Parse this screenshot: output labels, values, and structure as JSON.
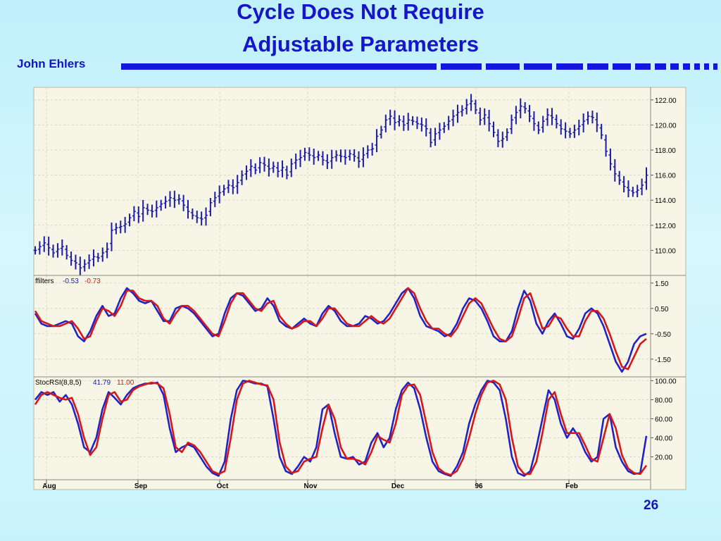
{
  "slide": {
    "title_line1": "Cycle Does Not Require",
    "title_line2": "Adjustable Parameters",
    "author": "John Ehlers",
    "page_number": "26"
  },
  "colors": {
    "title": "#1616c8",
    "panel_background": "#f7f6e6",
    "grid": "#d6d6c6",
    "price_bars": "#1c1ca8",
    "series_blue": "#2222c8",
    "series_red": "#d41818"
  },
  "chart_data": [
    {
      "type": "bar",
      "subtype": "ohlc-price-bars",
      "yticks": [
        "122.00",
        "120.00",
        "118.00",
        "116.00",
        "114.00",
        "112.00",
        "110.00"
      ],
      "ylim": [
        108,
        123
      ],
      "x_tick_labels": [
        "Aug",
        "Sep",
        "Oct",
        "Nov",
        "Dec",
        "96",
        "Feb"
      ],
      "grid": true,
      "close": [
        110.0,
        110.3,
        110.6,
        110.2,
        109.8,
        110.1,
        110.3,
        109.6,
        109.2,
        109.0,
        108.6,
        108.9,
        109.2,
        109.5,
        109.4,
        109.8,
        110.1,
        111.6,
        111.8,
        111.9,
        112.1,
        112.6,
        113.1,
        112.7,
        113.4,
        113.2,
        113.1,
        113.4,
        113.7,
        113.9,
        114.2,
        114.0,
        114.1,
        113.6,
        113.1,
        112.8,
        112.6,
        112.5,
        112.8,
        113.8,
        114.2,
        114.6,
        114.9,
        115.2,
        115.0,
        115.4,
        116.0,
        116.3,
        116.7,
        116.4,
        117.0,
        116.8,
        116.5,
        116.7,
        116.3,
        116.6,
        116.0,
        116.9,
        117.2,
        117.4,
        117.8,
        117.6,
        117.4,
        117.6,
        117.2,
        117.0,
        117.4,
        117.6,
        117.5,
        117.4,
        117.7,
        117.5,
        117.1,
        117.6,
        118.0,
        118.1,
        119.1,
        119.6,
        120.4,
        120.7,
        120.2,
        120.4,
        120.0,
        120.4,
        120.3,
        120.1,
        120.0,
        119.7,
        118.6,
        119.3,
        119.6,
        119.9,
        120.3,
        120.7,
        121.0,
        121.2,
        121.6,
        121.9,
        121.2,
        120.4,
        120.8,
        120.1,
        119.4,
        118.7,
        118.9,
        119.4,
        120.4,
        121.0,
        121.5,
        121.3,
        120.7,
        120.1,
        119.6,
        120.3,
        120.8,
        120.6,
        120.1,
        119.7,
        119.5,
        119.3,
        119.6,
        119.9,
        120.3,
        120.7,
        120.6,
        120.0,
        119.2,
        117.9,
        116.9,
        116.1,
        115.6,
        115.1,
        114.8,
        114.6,
        114.8,
        115.2,
        116.0
      ]
    },
    {
      "type": "line",
      "legend_label": "ffilters",
      "legend_values": [
        "-0.53",
        "-0.73"
      ],
      "yticks": [
        "1.50",
        "0.50",
        "-0.50",
        "-1.50"
      ],
      "ylim": [
        -2.2,
        1.8
      ],
      "grid": true,
      "series": [
        {
          "color": "#2222c8",
          "values": [
            0.3,
            -0.1,
            -0.2,
            -0.2,
            -0.1,
            0.0,
            -0.1,
            -0.6,
            -0.8,
            -0.4,
            0.2,
            0.6,
            0.2,
            0.3,
            0.9,
            1.3,
            1.1,
            0.8,
            0.7,
            0.8,
            0.4,
            0.0,
            0.0,
            0.5,
            0.6,
            0.5,
            0.3,
            0.0,
            -0.3,
            -0.6,
            -0.5,
            0.3,
            0.9,
            1.1,
            1.0,
            0.7,
            0.4,
            0.5,
            0.9,
            0.6,
            0.0,
            -0.2,
            -0.3,
            -0.1,
            0.1,
            -0.1,
            -0.2,
            0.3,
            0.6,
            0.4,
            0.0,
            -0.2,
            -0.2,
            -0.1,
            0.2,
            0.1,
            -0.1,
            0.0,
            0.3,
            0.7,
            1.1,
            1.3,
            0.9,
            0.2,
            -0.2,
            -0.3,
            -0.4,
            -0.6,
            -0.5,
            -0.1,
            0.5,
            0.9,
            0.8,
            0.5,
            0.0,
            -0.6,
            -0.8,
            -0.8,
            -0.4,
            0.5,
            1.2,
            0.8,
            -0.1,
            -0.5,
            0.0,
            0.3,
            -0.1,
            -0.6,
            -0.7,
            -0.3,
            0.3,
            0.5,
            0.3,
            -0.2,
            -0.9,
            -1.6,
            -2.0,
            -1.6,
            -0.9,
            -0.6,
            -0.5
          ]
        },
        {
          "color": "#d41818",
          "values": [
            0.4,
            0.0,
            -0.1,
            -0.2,
            -0.2,
            -0.1,
            0.0,
            -0.3,
            -0.7,
            -0.6,
            0.0,
            0.5,
            0.4,
            0.2,
            0.6,
            1.2,
            1.2,
            0.9,
            0.8,
            0.8,
            0.6,
            0.1,
            -0.1,
            0.3,
            0.6,
            0.6,
            0.4,
            0.1,
            -0.2,
            -0.5,
            -0.6,
            0.0,
            0.7,
            1.1,
            1.1,
            0.8,
            0.5,
            0.4,
            0.7,
            0.8,
            0.2,
            -0.1,
            -0.3,
            -0.2,
            0.0,
            0.0,
            -0.2,
            0.1,
            0.5,
            0.5,
            0.2,
            -0.1,
            -0.2,
            -0.2,
            0.0,
            0.2,
            0.0,
            -0.1,
            0.1,
            0.5,
            0.9,
            1.3,
            1.1,
            0.5,
            0.0,
            -0.3,
            -0.3,
            -0.5,
            -0.6,
            -0.3,
            0.2,
            0.7,
            0.9,
            0.7,
            0.2,
            -0.3,
            -0.7,
            -0.8,
            -0.6,
            0.1,
            0.9,
            1.1,
            0.4,
            -0.3,
            -0.2,
            0.2,
            0.1,
            -0.3,
            -0.6,
            -0.6,
            0.0,
            0.4,
            0.4,
            0.1,
            -0.5,
            -1.2,
            -1.8,
            -1.9,
            -1.4,
            -0.9,
            -0.7
          ]
        }
      ]
    },
    {
      "type": "line",
      "legend_label": "StocRSI(8,8,5)",
      "legend_values": [
        "41.79",
        "11.00"
      ],
      "yticks": [
        "100.00",
        "80.00",
        "60.00",
        "40.00",
        "20.00"
      ],
      "ylim": [
        -4,
        104
      ],
      "grid": true,
      "series": [
        {
          "color": "#2222c8",
          "values": [
            80,
            88,
            85,
            88,
            78,
            85,
            75,
            55,
            30,
            25,
            40,
            70,
            88,
            82,
            75,
            85,
            92,
            95,
            97,
            97,
            98,
            85,
            50,
            25,
            30,
            33,
            30,
            20,
            10,
            3,
            0,
            15,
            60,
            90,
            100,
            99,
            97,
            97,
            94,
            60,
            20,
            5,
            2,
            10,
            20,
            15,
            30,
            70,
            75,
            45,
            20,
            18,
            20,
            12,
            15,
            35,
            45,
            30,
            40,
            70,
            90,
            98,
            92,
            70,
            40,
            15,
            5,
            2,
            0,
            10,
            25,
            55,
            75,
            90,
            100,
            98,
            90,
            60,
            20,
            3,
            0,
            5,
            30,
            60,
            90,
            80,
            55,
            40,
            50,
            40,
            25,
            15,
            20,
            60,
            65,
            30,
            15,
            5,
            2,
            3,
            42
          ]
        },
        {
          "color": "#d41818",
          "values": [
            75,
            85,
            88,
            85,
            82,
            80,
            82,
            65,
            40,
            22,
            30,
            60,
            85,
            88,
            78,
            80,
            90,
            94,
            96,
            98,
            97,
            92,
            65,
            30,
            25,
            35,
            32,
            25,
            15,
            5,
            2,
            5,
            40,
            80,
            97,
            100,
            98,
            96,
            95,
            80,
            35,
            10,
            3,
            5,
            15,
            18,
            20,
            50,
            75,
            60,
            30,
            18,
            18,
            16,
            12,
            25,
            42,
            38,
            35,
            55,
            85,
            95,
            96,
            85,
            55,
            25,
            8,
            3,
            1,
            5,
            18,
            40,
            65,
            85,
            98,
            100,
            96,
            80,
            40,
            10,
            2,
            2,
            15,
            45,
            80,
            88,
            65,
            45,
            45,
            45,
            32,
            18,
            15,
            40,
            65,
            50,
            22,
            8,
            3,
            2,
            11
          ]
        }
      ]
    }
  ]
}
